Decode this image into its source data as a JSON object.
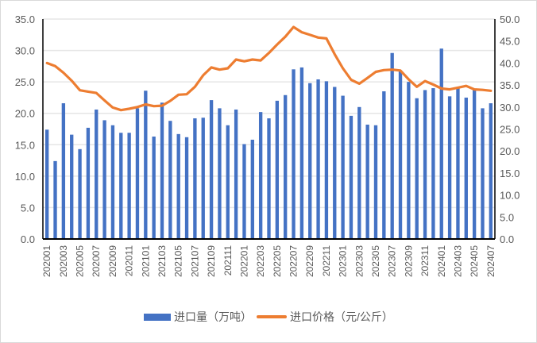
{
  "chart_data": {
    "type": "bar+line",
    "title": "",
    "categories": [
      "202001",
      "202002",
      "202003",
      "202004",
      "202005",
      "202006",
      "202007",
      "202008",
      "202009",
      "202010",
      "202011",
      "202012",
      "202101",
      "202102",
      "202103",
      "202104",
      "202105",
      "202106",
      "202107",
      "202108",
      "202109",
      "202110",
      "202111",
      "202112",
      "202201",
      "202202",
      "202203",
      "202204",
      "202205",
      "202206",
      "202207",
      "202208",
      "202209",
      "202210",
      "202211",
      "202212",
      "202301",
      "202302",
      "202303",
      "202304",
      "202305",
      "202306",
      "202307",
      "202308",
      "202309",
      "202310",
      "202311",
      "202312",
      "202401",
      "202402",
      "202403",
      "202404",
      "202405",
      "202406",
      "202407"
    ],
    "x_tick_labels": [
      "202001",
      "202003",
      "202005",
      "202007",
      "202009",
      "202011",
      "202101",
      "202103",
      "202105",
      "202107",
      "202109",
      "202111",
      "202201",
      "202203",
      "202205",
      "202207",
      "202209",
      "202211",
      "202301",
      "202303",
      "202305",
      "202307",
      "202309",
      "202311",
      "202401",
      "202403",
      "202405",
      "202407"
    ],
    "series": [
      {
        "name": "进口量（万吨）",
        "type": "bar",
        "axis": "left",
        "color": "#4472c4",
        "values": [
          17.4,
          12.4,
          21.6,
          16.6,
          14.3,
          17.7,
          20.6,
          18.9,
          18.1,
          16.9,
          16.9,
          20.8,
          23.6,
          16.3,
          21.7,
          18.8,
          16.7,
          16.2,
          19.2,
          19.3,
          22.1,
          20.8,
          18.1,
          20.6,
          15.1,
          15.8,
          20.2,
          19.2,
          22.0,
          22.9,
          27.0,
          27.3,
          24.8,
          25.4,
          25.1,
          24.2,
          22.8,
          19.6,
          21.0,
          18.2,
          18.1,
          23.5,
          29.6,
          26.8,
          25.0,
          22.4,
          23.7,
          24.0,
          30.3,
          22.7,
          24.0,
          22.5,
          23.9,
          20.8,
          21.6
        ]
      },
      {
        "name": "进口价格（元/公斤）",
        "type": "line",
        "axis": "right",
        "color": "#ed7d31",
        "values": [
          40.0,
          39.3,
          37.8,
          36.0,
          33.8,
          33.5,
          33.2,
          31.5,
          29.9,
          29.3,
          29.6,
          30.0,
          30.6,
          30.2,
          30.3,
          31.4,
          32.8,
          32.9,
          34.6,
          37.2,
          39.0,
          38.5,
          38.8,
          40.8,
          40.4,
          40.8,
          40.6,
          42.3,
          44.2,
          46.0,
          48.2,
          47.0,
          46.4,
          45.8,
          45.6,
          42.0,
          38.8,
          36.2,
          35.3,
          36.6,
          38.0,
          38.4,
          38.5,
          38.3,
          36.3,
          34.6,
          35.9,
          35.1,
          34.2,
          34.0,
          34.4,
          34.8,
          34.0,
          33.9,
          33.7
        ]
      }
    ],
    "left_axis": {
      "min": 0,
      "max": 35,
      "step": 5,
      "tick_labels": [
        "0.0",
        "5.0",
        "10.0",
        "15.0",
        "20.0",
        "25.0",
        "30.0",
        "35.0"
      ]
    },
    "right_axis": {
      "min": 0,
      "max": 50,
      "step": 5,
      "tick_labels": [
        "0.0",
        "5.0",
        "10.0",
        "15.0",
        "20.0",
        "25.0",
        "30.0",
        "35.0",
        "40.0",
        "45.0",
        "50.0"
      ]
    },
    "xlabel": "",
    "ylabel": "",
    "grid": true,
    "legend_position": "bottom"
  },
  "legend": {
    "bar_label": "进口量（万吨）",
    "line_label": "进口价格（元/公斤）"
  }
}
